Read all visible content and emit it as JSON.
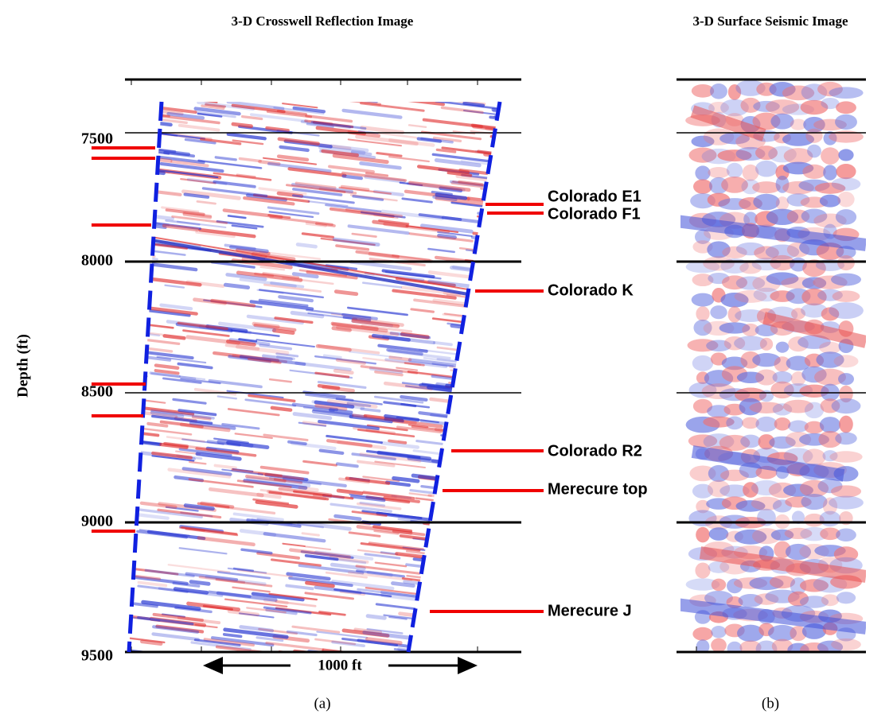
{
  "panels": [
    {
      "title": "3-D Crosswell Reflection Image",
      "caption": "(a)",
      "scale_label": "1000 ft"
    },
    {
      "title": "3-D Surface Seismic Image",
      "caption": "(b)"
    }
  ],
  "y_axis": {
    "label": "Depth (ft)",
    "ticks": [
      7500,
      8000,
      8500,
      9000,
      9500
    ]
  },
  "horizons": [
    {
      "label": "Colorado E1"
    },
    {
      "label": "Colorado F1"
    },
    {
      "label": "Colorado K"
    },
    {
      "label": "Colorado R2"
    },
    {
      "label": "Merecure top"
    },
    {
      "label": "Merecure J"
    }
  ]
}
